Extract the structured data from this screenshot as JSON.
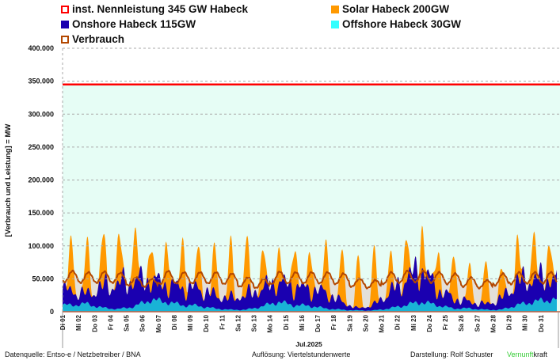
{
  "chart_data": {
    "type": "area",
    "title": "",
    "ylabel": "[Verbrauch und Leistung] = MW",
    "xlabel": "Jul.2025",
    "ylim": [
      0,
      400000
    ],
    "yticks": [
      "0",
      "50.000",
      "100.000",
      "150.000",
      "200.000",
      "250.000",
      "300.000",
      "350.000",
      "400.000"
    ],
    "ytick_values": [
      0,
      50000,
      100000,
      150000,
      200000,
      250000,
      300000,
      350000,
      400000
    ],
    "grid": true,
    "categories": [
      "Di 01",
      "Mi 02",
      "Do 03",
      "Fr 04",
      "Sa 05",
      "So 06",
      "Mo 07",
      "Di 08",
      "Mi 09",
      "Do 10",
      "Fr 11",
      "Sa 12",
      "So 13",
      "Mo 14",
      "Di 15",
      "Mi 16",
      "Do 17",
      "Fr 18",
      "Sa 19",
      "So 20",
      "Mo 21",
      "Di 22",
      "Mi 23",
      "Do 24",
      "Fr 25",
      "Sa 26",
      "So 27",
      "Mo 28",
      "Di 29",
      "Mi 30",
      "Do 31"
    ],
    "legend": [
      {
        "label": "inst. Nennleistung 345 GW Habeck",
        "color": "#ff0000",
        "fill": "#e6fdf5"
      },
      {
        "label": "Solar Habeck 200GW",
        "color": "#ff9900"
      },
      {
        "label": "Onshore Habeck 115GW",
        "color": "#1a00b0"
      },
      {
        "label": "Offshore Habeck 30GW",
        "color": "#19b3d6"
      },
      {
        "label": "Verbrauch",
        "color": "#b34700",
        "fill": "#e3e0da"
      }
    ],
    "capacity_line": 345000,
    "series": [
      {
        "name": "Offshore Habeck 30GW",
        "daily_mean": [
          10000,
          12000,
          6000,
          4000,
          8000,
          18000,
          15000,
          10000,
          9000,
          5000,
          3000,
          3000,
          8000,
          15000,
          10000,
          9000,
          5000,
          3000,
          2000,
          2000,
          5000,
          10000,
          15000,
          10000,
          5000,
          5000,
          3000,
          3000,
          10000,
          15000,
          18000
        ]
      },
      {
        "name": "Onshore Habeck 115GW",
        "daily_mean": [
          22000,
          14000,
          32000,
          38000,
          40000,
          30000,
          26000,
          26000,
          26000,
          20000,
          17000,
          22000,
          27000,
          30000,
          28000,
          25000,
          24000,
          12000,
          3000,
          8000,
          24000,
          38000,
          52000,
          24000,
          15000,
          10000,
          8000,
          16000,
          35000,
          35000,
          33000
        ]
      },
      {
        "name": "Solar Habeck 200GW",
        "daily_peak": [
          80000,
          80000,
          80000,
          75000,
          80000,
          60000,
          70000,
          75000,
          65000,
          72000,
          85000,
          85000,
          60000,
          55000,
          70000,
          65000,
          80000,
          80000,
          80000,
          85000,
          55000,
          65000,
          65000,
          65000,
          70000,
          58000,
          65000,
          45000,
          60000,
          70000,
          60000
        ]
      },
      {
        "name": "Verbrauch",
        "daily_max": [
          62000,
          60000,
          61000,
          59000,
          52000,
          50000,
          62000,
          60000,
          60000,
          60000,
          58000,
          52000,
          50000,
          61000,
          60000,
          60000,
          60000,
          58000,
          50000,
          48000,
          60000,
          62000,
          62000,
          60000,
          58000,
          52000,
          48000,
          58000,
          60000,
          60000,
          60000
        ],
        "daily_min": [
          45000,
          44000,
          44000,
          44000,
          40000,
          38000,
          42000,
          43000,
          43000,
          43000,
          42000,
          38000,
          36000,
          42000,
          43000,
          43000,
          43000,
          42000,
          38000,
          36000,
          42000,
          44000,
          45000,
          44000,
          42000,
          38000,
          36000,
          40000,
          42000,
          43000,
          43000
        ]
      }
    ]
  },
  "footer": {
    "source": "Datenquelle: Entso-e  / Netzbetreiber / BNA",
    "resolution": "Auflösung: Viertelstundenwerte",
    "author": "Darstellung:  Rolf Schuster",
    "brand_a": "Vernunft",
    "brand_b": "kraft"
  }
}
